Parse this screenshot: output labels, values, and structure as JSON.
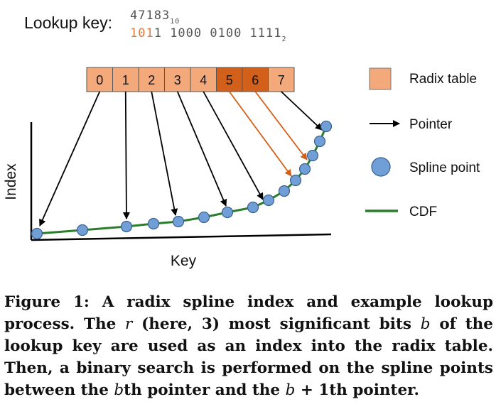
{
  "lookup": {
    "label": "Lookup key:",
    "decimal": "47183",
    "decimal_base": "10",
    "binary_msb": "101",
    "binary_rest": "1 1000 0100 1111",
    "binary_base": "2"
  },
  "radix_table": {
    "cells": [
      "0",
      "1",
      "2",
      "3",
      "4",
      "5",
      "6",
      "7"
    ],
    "highlighted": [
      5,
      6
    ]
  },
  "legend": {
    "radix_table": "Radix table",
    "pointer": "Pointer",
    "spline_point": "Spline point",
    "cdf": "CDF"
  },
  "axes": {
    "y_label": "Index",
    "x_label": "Key"
  },
  "colors": {
    "cell": "#f3a97a",
    "cell_highlight": "#d2601a",
    "binary_msb": "#e07a3e",
    "spline_point": "#6f9fd6",
    "cdf": "#2a7d2a",
    "pointer": "#000000",
    "pointer_highlight": "#d2601a"
  },
  "caption": {
    "title": "Figure 1: A radix spline index and example lookup process.",
    "text_1": "The",
    "var_r": "r",
    "text_2": "(here, 3) most significant bits",
    "var_b": "b",
    "text_3": "of the lookup key are used as an index into the radix table. Then, a binary search is performed on the spline points between the",
    "var_b2": "b",
    "text_4": "th pointer and the",
    "var_b3": "b",
    "text_5": "+ 1th pointer."
  }
}
